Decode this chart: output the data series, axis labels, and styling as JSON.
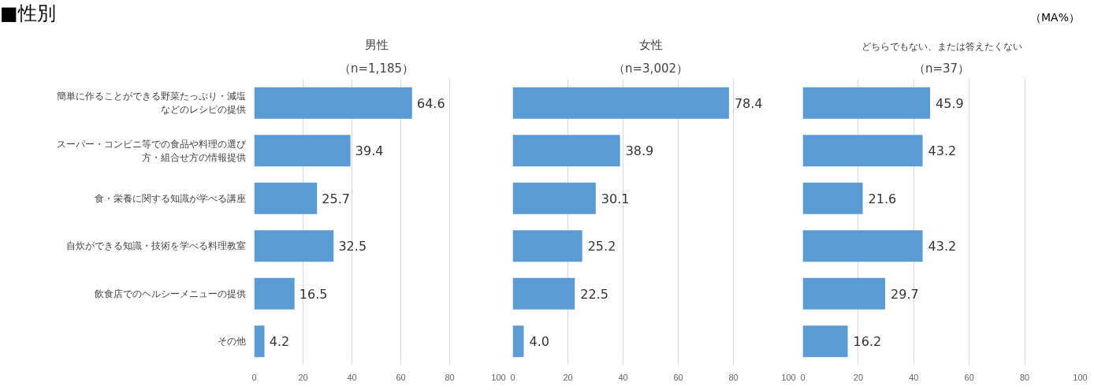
{
  "chart_data": [
    {
      "type": "bar",
      "orientation": "horizontal",
      "title": "男性",
      "subtitle": "（n=1,185）",
      "annotations": [
        "■性別"
      ],
      "categories": [
        "簡単に作ることができる野菜たっぷり・減塩などのレシピの提供",
        "スーパー・コンビニ等での食品や料理の選び方・組合せ方の情報提供",
        "食・栄養に関する知識が学べる講座",
        "自炊ができる知識・技術を学べる料理教室",
        "飲食店でのヘルシーメニューの提供",
        "その他"
      ],
      "values": [
        64.6,
        39.4,
        25.7,
        32.5,
        16.5,
        4.2
      ],
      "color": "#5b9bd5",
      "xlim": [
        0,
        100
      ],
      "xticks": [
        0,
        20,
        40,
        60,
        80,
        100
      ],
      "grid": "x",
      "data_labels": true
    },
    {
      "type": "bar",
      "orientation": "horizontal",
      "title": "女性",
      "subtitle": "（n=3,002）",
      "tick_labels": "x",
      "categories": [
        "簡単に作ることができる野菜たっぷり・減塩などのレシピの提供",
        "スーパー・コンビニ等での食品や料理の選び方・組合せ方の情報提供",
        "食・栄養に関する知識が学べる講座",
        "自炊ができる知識・技術を学べる料理教室",
        "飲食店でのヘルシーメニューの提供",
        "その他"
      ],
      "values": [
        78.4,
        38.9,
        30.1,
        25.2,
        22.5,
        4.0
      ],
      "value_labels": [
        "78.4",
        "38.9",
        "30.1",
        "25.2",
        "22.5",
        "4.0"
      ],
      "color": "#5b9bd5",
      "xlim": [
        0,
        100
      ],
      "xticks": [
        0,
        20,
        40,
        60,
        80,
        100
      ],
      "grid": "x"
    },
    {
      "type": "bar",
      "orientation": "horizontal",
      "title": "どちらでもない、または答えたくない",
      "subtitle": "（n=37）",
      "tick_labels": "x",
      "annotations": [
        "（MA%）"
      ],
      "categories": [
        "簡単に作ることができる野菜たっぷり・減塩などのレシピの提供",
        "スーパー・コンビニ等での食品や料理の選び方・組合せ方の情報提供",
        "食・栄養に関する知識が学べる講座",
        "自炊ができる知識・技術を学べる料理教室",
        "飲食店でのヘルシーメニューの提供",
        "その他"
      ],
      "values": [
        45.9,
        43.2,
        21.6,
        43.2,
        29.7,
        16.2
      ],
      "color": "#5b9bd5",
      "xlim": [
        0,
        100
      ],
      "xticks": [
        0,
        20,
        40,
        60,
        80,
        100
      ],
      "grid": "x",
      "data_labels": true
    }
  ]
}
